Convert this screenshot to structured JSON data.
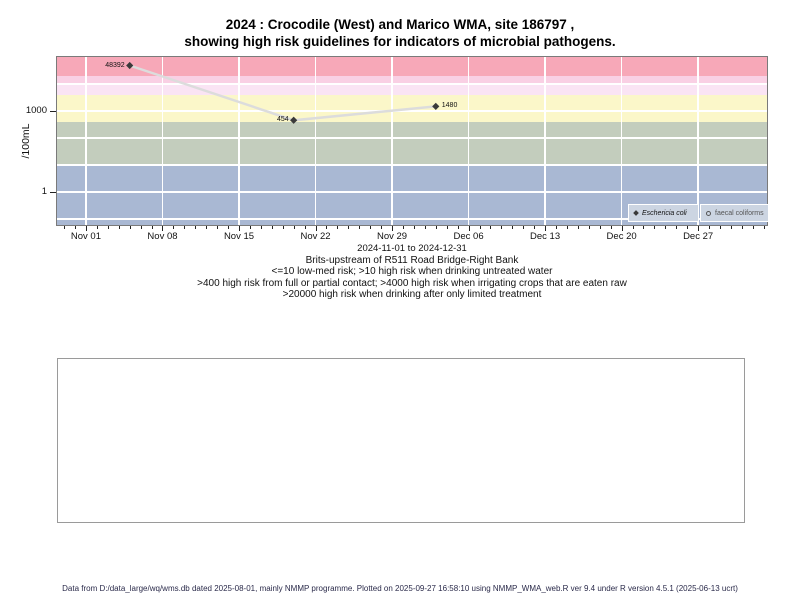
{
  "title": {
    "line1": "2024 : Crocodile (West) and Marico WMA, site 186797 ,",
    "line2": "showing high risk guidelines for indicators of microbial pathogens."
  },
  "chart_data": {
    "type": "line",
    "title": "2024 : Crocodile (West) and Marico WMA, site 186797 , showing high risk guidelines for indicators of microbial pathogens.",
    "ylabel": "/100mL",
    "xlabel": "2024-11-01 to 2024-12-31",
    "y_axis": {
      "scale": "log",
      "top": 100000,
      "bottom": 0.06,
      "ticks": [
        {
          "value": 1000,
          "label": "1000"
        },
        {
          "value": 1,
          "label": "1"
        }
      ],
      "gridline_values": [
        10000,
        1000,
        100,
        10,
        1,
        0.1
      ]
    },
    "x_axis": {
      "start_date": "2024-11-01",
      "min_day": -2.65,
      "max_day": 62.3,
      "minor_tick_step_days": 1,
      "major_ticks": [
        {
          "day": 0,
          "label": "Nov 01"
        },
        {
          "day": 7,
          "label": "Nov 08"
        },
        {
          "day": 14,
          "label": "Nov 15"
        },
        {
          "day": 21,
          "label": "Nov 22"
        },
        {
          "day": 28,
          "label": "Nov 29"
        },
        {
          "day": 35,
          "label": "Dec 06"
        },
        {
          "day": 42,
          "label": "Dec 13"
        },
        {
          "day": 49,
          "label": "Dec 20"
        },
        {
          "day": 56,
          "label": "Dec 27"
        }
      ]
    },
    "bands": [
      {
        "name": "gt-20000",
        "from": 20000,
        "to": 100000,
        "color": "#f7a8b8",
        "meaning": ">20000 high risk when drinking after only limited treatment"
      },
      {
        "name": "10000-20000",
        "from": 10000,
        "to": 20000,
        "color": "#f9d0e4",
        "meaning": "10000 to 20000"
      },
      {
        "name": "4000-10000",
        "from": 4000,
        "to": 10000,
        "color": "#fae4f4",
        "meaning": ">4000 high risk when irrigating crops that are eaten raw"
      },
      {
        "name": "400-4000",
        "from": 400,
        "to": 4000,
        "color": "#fbf7c9",
        "meaning": ">400 high risk from full or partial contact"
      },
      {
        "name": "10-400",
        "from": 10,
        "to": 400,
        "color": "#c3cdbd",
        "meaning": ">10 high risk when drinking untreated water"
      },
      {
        "name": "lt-10",
        "from": 0.06,
        "to": 10,
        "color": "#a9b8d3",
        "meaning": "<=10 low-med risk"
      }
    ],
    "series": [
      {
        "name": "Eschericia coli",
        "marker": "filled-diamond",
        "line_color": "#dcdcdc",
        "marker_color": "#3a3a3a",
        "points": [
          {
            "date": "2024-11-05",
            "day": 4,
            "value": 48392,
            "label": "48392",
            "label_side": "left"
          },
          {
            "date": "2024-11-20",
            "day": 19,
            "value": 454,
            "label": "454",
            "label_side": "left"
          },
          {
            "date": "2024-12-03",
            "day": 32,
            "value": 1480,
            "label": "1480",
            "label_side": "right"
          }
        ]
      },
      {
        "name": "faecal coliforms",
        "marker": "open-circle",
        "points": []
      }
    ],
    "legend": {
      "position": "bottom-right",
      "items": [
        {
          "label": "Eschericia coli",
          "marker": "filled-diamond"
        },
        {
          "label": "faecal coliforms",
          "marker": "open-circle"
        }
      ]
    }
  },
  "captions": {
    "site": "Brits-upstream of R511 Road Bridge-Right Bank",
    "guideline1": "<=10 low-med risk; >10 high risk when drinking untreated water",
    "guideline2": ">400 high risk from full or partial contact; >4000 high risk when irrigating crops that are eaten raw",
    "guideline3": ">20000 high risk when drinking after only limited treatment"
  },
  "footer": {
    "text": "Data from D:/data_large/wq/wms.db dated 2025-08-01, mainly NMMP programme. Plotted on 2025-09-27 16:58:10 using NMMP_WMA_web.R ver 9.4 under R version 4.5.1 (2025-06-13 ucrt)"
  }
}
